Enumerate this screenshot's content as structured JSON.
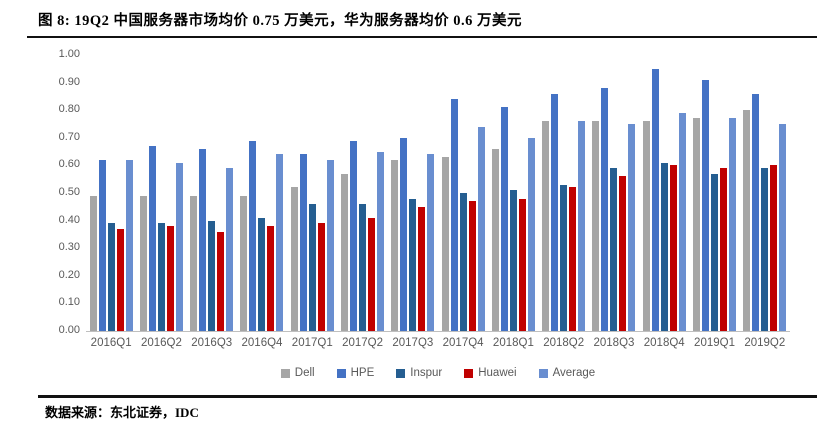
{
  "title": "图 8: 19Q2 中国服务器市场均价 0.75 万美元，华为服务器均价 0.6 万美元",
  "source": "数据来源：东北证券，IDC",
  "colors": {
    "dell": "#A6A6A6",
    "hpe": "#4472C4",
    "inspur": "#255E91",
    "huawei": "#C00000",
    "average": "#698ED0",
    "axis_text": "#595959",
    "axis_line": "#BFBFBF",
    "divider": "#111111"
  },
  "chart_data": {
    "type": "bar",
    "title": "图 8: 19Q2 中国服务器市场均价 0.75 万美元，华为服务器均价 0.6 万美元",
    "xlabel": "",
    "ylabel": "",
    "ylim": [
      0,
      1.0
    ],
    "yticks": [
      "1.00",
      "0.90",
      "0.80",
      "0.70",
      "0.60",
      "0.50",
      "0.40",
      "0.30",
      "0.20",
      "0.10",
      "0.00"
    ],
    "grid": false,
    "legend_position": "bottom",
    "categories": [
      "2016Q1",
      "2016Q2",
      "2016Q3",
      "2016Q4",
      "2017Q1",
      "2017Q2",
      "2017Q3",
      "2017Q4",
      "2018Q1",
      "2018Q2",
      "2018Q3",
      "2018Q4",
      "2019Q1",
      "2019Q2"
    ],
    "series": [
      {
        "name": "Dell",
        "color_key": "dell",
        "values": [
          0.49,
          0.49,
          0.49,
          0.49,
          0.52,
          0.57,
          0.62,
          0.63,
          0.66,
          0.76,
          0.76,
          0.76,
          0.77,
          0.8
        ]
      },
      {
        "name": "HPE",
        "color_key": "hpe",
        "values": [
          0.62,
          0.67,
          0.66,
          0.69,
          0.64,
          0.69,
          0.7,
          0.84,
          0.81,
          0.86,
          0.88,
          0.95,
          0.91,
          0.86
        ]
      },
      {
        "name": "Inspur",
        "color_key": "inspur",
        "values": [
          0.39,
          0.39,
          0.4,
          0.41,
          0.46,
          0.46,
          0.48,
          0.5,
          0.51,
          0.53,
          0.59,
          0.61,
          0.57,
          0.59
        ]
      },
      {
        "name": "Huawei",
        "color_key": "huawei",
        "values": [
          0.37,
          0.38,
          0.36,
          0.38,
          0.39,
          0.41,
          0.45,
          0.47,
          0.48,
          0.52,
          0.56,
          0.6,
          0.59,
          0.6
        ]
      },
      {
        "name": "Average",
        "color_key": "average",
        "values": [
          0.62,
          0.61,
          0.59,
          0.64,
          0.62,
          0.65,
          0.64,
          0.74,
          0.7,
          0.76,
          0.75,
          0.79,
          0.77,
          0.75
        ]
      }
    ]
  }
}
